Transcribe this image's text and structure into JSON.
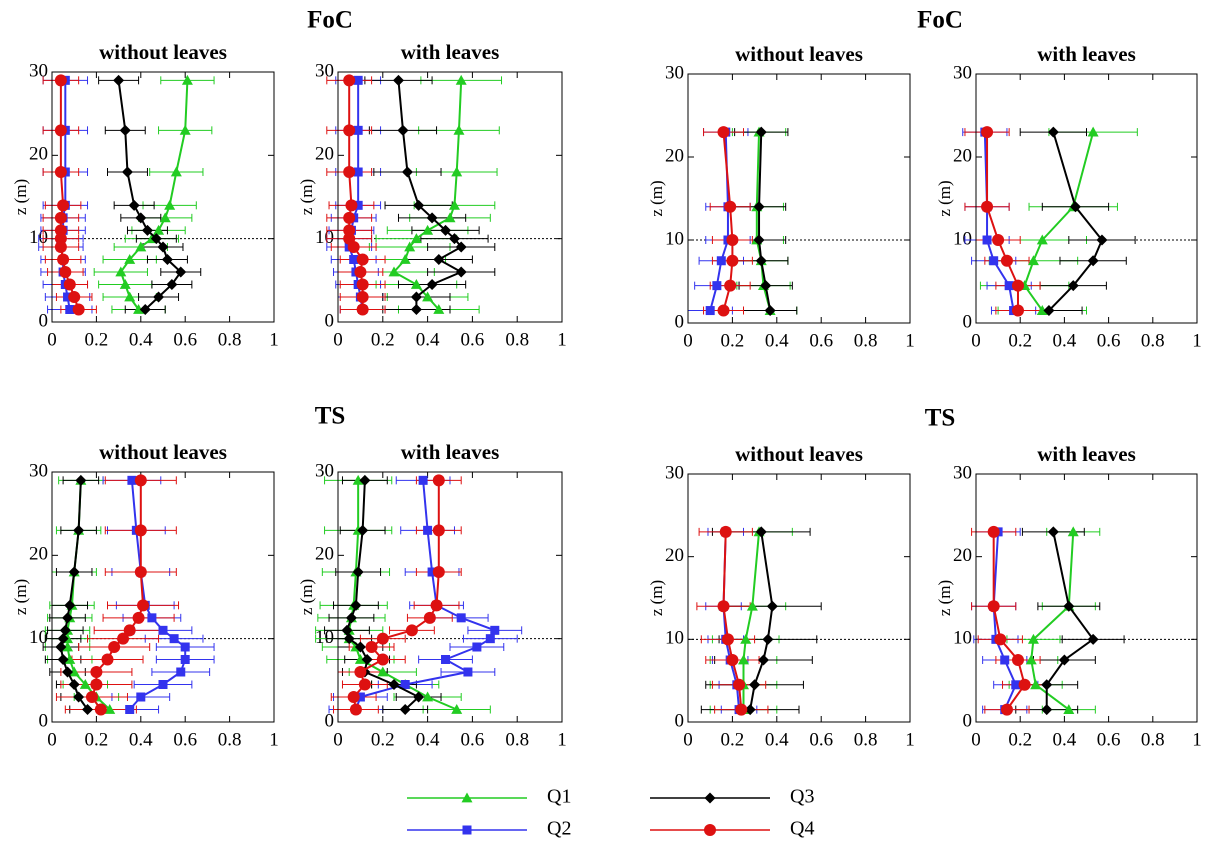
{
  "chart_data": [
    {
      "type": "line",
      "suptitle": "FoC",
      "title": "without leaves",
      "ylabel": "z (m)",
      "xlim": [
        0,
        1
      ],
      "xticks": [
        0,
        0.2,
        0.4,
        0.6,
        0.8,
        1
      ],
      "ylim": [
        0,
        30
      ],
      "yticks": [
        0,
        10,
        20,
        30
      ],
      "hline": 10,
      "series": [
        {
          "name": "Q1",
          "color": "#22cc22",
          "marker": "triangle",
          "error": 0.12,
          "z": [
            29,
            23,
            18,
            14,
            12.5,
            11,
            10,
            9,
            7.5,
            6,
            4.5,
            3,
            1.5
          ],
          "values": [
            0.61,
            0.6,
            0.56,
            0.53,
            0.51,
            0.48,
            0.45,
            0.4,
            0.35,
            0.31,
            0.33,
            0.35,
            0.39
          ]
        },
        {
          "name": "Q2",
          "color": "#3333ee",
          "marker": "square",
          "error": 0.1,
          "z": [
            29,
            23,
            18,
            14,
            12.5,
            11,
            10,
            9,
            7.5,
            6,
            4.5,
            3,
            1.5
          ],
          "values": [
            0.06,
            0.06,
            0.06,
            0.06,
            0.05,
            0.05,
            0.04,
            0.04,
            0.05,
            0.05,
            0.06,
            0.07,
            0.08
          ]
        },
        {
          "name": "Q3",
          "color": "#000000",
          "marker": "diamond",
          "error": 0.09,
          "z": [
            29,
            23,
            18,
            14,
            12.5,
            11,
            10,
            9,
            7.5,
            6,
            4.5,
            3,
            1.5
          ],
          "values": [
            0.3,
            0.33,
            0.34,
            0.37,
            0.4,
            0.43,
            0.47,
            0.5,
            0.52,
            0.58,
            0.54,
            0.48,
            0.42
          ]
        },
        {
          "name": "Q4",
          "color": "#dd1111",
          "marker": "circle",
          "error": 0.08,
          "z": [
            29,
            23,
            18,
            14,
            12.5,
            11,
            10,
            9,
            7.5,
            6,
            4.5,
            3,
            1.5
          ],
          "values": [
            0.04,
            0.04,
            0.04,
            0.05,
            0.04,
            0.04,
            0.04,
            0.04,
            0.05,
            0.06,
            0.08,
            0.1,
            0.12
          ]
        }
      ]
    },
    {
      "type": "line",
      "title": "with leaves",
      "ylabel": "z (m)",
      "xlim": [
        0,
        1
      ],
      "xticks": [
        0,
        0.2,
        0.4,
        0.6,
        0.8,
        1
      ],
      "ylim": [
        0,
        30
      ],
      "yticks": [
        0,
        10,
        20,
        30
      ],
      "hline": 10,
      "series": [
        {
          "name": "Q1",
          "color": "#22cc22",
          "marker": "triangle",
          "error": 0.18,
          "z": [
            29,
            23,
            18,
            14,
            12.5,
            11,
            10,
            9,
            7.5,
            6,
            4.5,
            3,
            1.5
          ],
          "values": [
            0.55,
            0.54,
            0.53,
            0.52,
            0.5,
            0.4,
            0.35,
            0.32,
            0.3,
            0.25,
            0.35,
            0.4,
            0.45
          ]
        },
        {
          "name": "Q2",
          "color": "#3333ee",
          "marker": "square",
          "error": 0.1,
          "z": [
            29,
            23,
            18,
            14,
            12.5,
            11,
            10,
            9,
            7.5,
            6,
            4.5,
            3,
            1.5
          ],
          "values": [
            0.09,
            0.09,
            0.09,
            0.09,
            0.07,
            0.06,
            0.05,
            0.05,
            0.07,
            0.08,
            0.09,
            0.1,
            0.11
          ]
        },
        {
          "name": "Q3",
          "color": "#000000",
          "marker": "diamond",
          "error": 0.15,
          "z": [
            29,
            23,
            18,
            14,
            12.5,
            11,
            10,
            9,
            7.5,
            6,
            4.5,
            3,
            1.5
          ],
          "values": [
            0.27,
            0.29,
            0.31,
            0.36,
            0.42,
            0.48,
            0.52,
            0.55,
            0.45,
            0.55,
            0.42,
            0.35,
            0.35
          ]
        },
        {
          "name": "Q4",
          "color": "#dd1111",
          "marker": "circle",
          "error": 0.1,
          "z": [
            29,
            23,
            18,
            14,
            12.5,
            11,
            10,
            9,
            7.5,
            6,
            4.5,
            3,
            1.5
          ],
          "values": [
            0.05,
            0.05,
            0.05,
            0.06,
            0.05,
            0.05,
            0.05,
            0.07,
            0.11,
            0.1,
            0.11,
            0.11,
            0.11
          ]
        }
      ]
    },
    {
      "type": "line",
      "suptitle": "FoC",
      "title": "without leaves",
      "ylabel": "z (m)",
      "xlim": [
        0,
        1
      ],
      "xticks": [
        0,
        0.2,
        0.4,
        0.6,
        0.8,
        1
      ],
      "ylim": [
        0,
        30
      ],
      "yticks": [
        0,
        10,
        20,
        30
      ],
      "hline": 10,
      "series": [
        {
          "name": "Q1",
          "color": "#22cc22",
          "marker": "triangle",
          "error": 0.12,
          "z": [
            23,
            14,
            10,
            7.5,
            4.5,
            1.5
          ],
          "values": [
            0.32,
            0.31,
            0.31,
            0.33,
            0.34,
            0.37
          ]
        },
        {
          "name": "Q2",
          "color": "#3333ee",
          "marker": "square",
          "error": 0.1,
          "z": [
            23,
            14,
            10,
            7.5,
            4.5,
            1.5
          ],
          "values": [
            0.17,
            0.18,
            0.18,
            0.15,
            0.13,
            0.1
          ]
        },
        {
          "name": "Q3",
          "color": "#000000",
          "marker": "diamond",
          "error": 0.12,
          "z": [
            23,
            14,
            10,
            7.5,
            4.5,
            1.5
          ],
          "values": [
            0.33,
            0.32,
            0.32,
            0.33,
            0.35,
            0.37
          ]
        },
        {
          "name": "Q4",
          "color": "#dd1111",
          "marker": "circle",
          "error": 0.09,
          "z": [
            23,
            14,
            10,
            7.5,
            4.5,
            1.5
          ],
          "values": [
            0.16,
            0.19,
            0.2,
            0.2,
            0.19,
            0.16
          ]
        }
      ]
    },
    {
      "type": "line",
      "title": "with leaves",
      "ylabel": "z (m)",
      "xlim": [
        0,
        1
      ],
      "xticks": [
        0,
        0.2,
        0.4,
        0.6,
        0.8,
        1
      ],
      "ylim": [
        0,
        30
      ],
      "yticks": [
        0,
        10,
        20,
        30
      ],
      "hline": 10,
      "series": [
        {
          "name": "Q1",
          "color": "#22cc22",
          "marker": "triangle",
          "error": 0.2,
          "z": [
            23,
            14,
            10,
            7.5,
            4.5,
            1.5
          ],
          "values": [
            0.53,
            0.44,
            0.3,
            0.26,
            0.22,
            0.3
          ]
        },
        {
          "name": "Q2",
          "color": "#3333ee",
          "marker": "square",
          "error": 0.1,
          "z": [
            23,
            14,
            10,
            7.5,
            4.5,
            1.5
          ],
          "values": [
            0.04,
            0.05,
            0.05,
            0.08,
            0.15,
            0.17
          ]
        },
        {
          "name": "Q3",
          "color": "#000000",
          "marker": "diamond",
          "error": 0.15,
          "z": [
            23,
            14,
            10,
            7.5,
            4.5,
            1.5
          ],
          "values": [
            0.35,
            0.45,
            0.57,
            0.53,
            0.44,
            0.33
          ]
        },
        {
          "name": "Q4",
          "color": "#dd1111",
          "marker": "circle",
          "error": 0.1,
          "z": [
            23,
            14,
            10,
            7.5,
            4.5,
            1.5
          ],
          "values": [
            0.05,
            0.05,
            0.1,
            0.14,
            0.19,
            0.19
          ]
        }
      ]
    },
    {
      "type": "line",
      "suptitle": "TS",
      "title": "without leaves",
      "ylabel": "z (m)",
      "xlim": [
        0,
        1
      ],
      "xticks": [
        0,
        0.2,
        0.4,
        0.6,
        0.8,
        1
      ],
      "ylim": [
        0,
        30
      ],
      "yticks": [
        0,
        10,
        20,
        30
      ],
      "hline": 10,
      "series": [
        {
          "name": "Q1",
          "color": "#22cc22",
          "marker": "triangle",
          "error": 0.1,
          "z": [
            29,
            23,
            18,
            14,
            12.5,
            11,
            10,
            9,
            7.5,
            6,
            4.5,
            3,
            1.5
          ],
          "values": [
            0.13,
            0.12,
            0.1,
            0.09,
            0.08,
            0.07,
            0.07,
            0.07,
            0.08,
            0.1,
            0.15,
            0.2,
            0.26
          ]
        },
        {
          "name": "Q2",
          "color": "#3333ee",
          "marker": "square",
          "error": 0.13,
          "z": [
            29,
            23,
            18,
            14,
            12.5,
            11,
            10,
            9,
            7.5,
            6,
            4.5,
            3,
            1.5
          ],
          "values": [
            0.36,
            0.38,
            0.4,
            0.42,
            0.45,
            0.5,
            0.55,
            0.6,
            0.6,
            0.58,
            0.5,
            0.4,
            0.35
          ]
        },
        {
          "name": "Q3",
          "color": "#000000",
          "marker": "diamond",
          "error": 0.08,
          "z": [
            29,
            23,
            18,
            14,
            12.5,
            11,
            10,
            9,
            7.5,
            6,
            4.5,
            3,
            1.5
          ],
          "values": [
            0.13,
            0.12,
            0.1,
            0.08,
            0.07,
            0.06,
            0.05,
            0.04,
            0.05,
            0.07,
            0.1,
            0.12,
            0.16
          ]
        },
        {
          "name": "Q4",
          "color": "#dd1111",
          "marker": "circle",
          "error": 0.16,
          "z": [
            29,
            23,
            18,
            14,
            12.5,
            11,
            10,
            9,
            7.5,
            6,
            4.5,
            3,
            1.5
          ],
          "values": [
            0.4,
            0.4,
            0.4,
            0.41,
            0.39,
            0.35,
            0.32,
            0.28,
            0.25,
            0.2,
            0.2,
            0.18,
            0.22
          ]
        }
      ]
    },
    {
      "type": "line",
      "title": "with leaves",
      "ylabel": "z (m)",
      "xlim": [
        0,
        1
      ],
      "xticks": [
        0,
        0.2,
        0.4,
        0.6,
        0.8,
        1
      ],
      "ylim": [
        0,
        30
      ],
      "yticks": [
        0,
        10,
        20,
        30
      ],
      "hline": 10,
      "series": [
        {
          "name": "Q1",
          "color": "#22cc22",
          "marker": "triangle",
          "error": 0.15,
          "z": [
            29,
            23,
            18,
            14,
            12.5,
            11,
            10,
            9,
            7.5,
            6,
            4.5,
            3,
            1.5
          ],
          "values": [
            0.09,
            0.09,
            0.08,
            0.07,
            0.06,
            0.05,
            0.05,
            0.08,
            0.1,
            0.2,
            0.3,
            0.4,
            0.53
          ]
        },
        {
          "name": "Q2",
          "color": "#3333ee",
          "marker": "square",
          "error": 0.12,
          "z": [
            29,
            23,
            18,
            14,
            12.5,
            11,
            10,
            9,
            7.5,
            6,
            4.5,
            3,
            1.5
          ],
          "values": [
            0.38,
            0.4,
            0.42,
            0.44,
            0.55,
            0.7,
            0.68,
            0.62,
            0.48,
            0.58,
            0.3,
            0.1,
            0.08
          ]
        },
        {
          "name": "Q3",
          "color": "#000000",
          "marker": "diamond",
          "error": 0.1,
          "z": [
            29,
            23,
            18,
            14,
            12.5,
            11,
            10,
            9,
            7.5,
            6,
            4.5,
            3,
            1.5
          ],
          "values": [
            0.12,
            0.11,
            0.09,
            0.08,
            0.06,
            0.04,
            0.05,
            0.1,
            0.13,
            0.12,
            0.25,
            0.36,
            0.3
          ]
        },
        {
          "name": "Q4",
          "color": "#dd1111",
          "marker": "circle",
          "error": 0.1,
          "z": [
            29,
            23,
            18,
            14,
            12.5,
            11,
            10,
            9,
            7.5,
            6,
            4.5,
            3,
            1.5
          ],
          "values": [
            0.45,
            0.45,
            0.45,
            0.44,
            0.41,
            0.33,
            0.2,
            0.15,
            0.2,
            0.1,
            0.12,
            0.07,
            0.08
          ]
        }
      ]
    },
    {
      "type": "line",
      "suptitle": "TS",
      "title": "without leaves",
      "ylabel": "z (m)",
      "xlim": [
        0,
        1
      ],
      "xticks": [
        0,
        0.2,
        0.4,
        0.6,
        0.8,
        1
      ],
      "ylim": [
        0,
        30
      ],
      "yticks": [
        0,
        10,
        20,
        30
      ],
      "hline": 10,
      "series": [
        {
          "name": "Q1",
          "color": "#22cc22",
          "marker": "triangle",
          "error": 0.15,
          "z": [
            23,
            14,
            10,
            7.5,
            4.5,
            1.5
          ],
          "values": [
            0.32,
            0.29,
            0.26,
            0.25,
            0.25,
            0.25
          ]
        },
        {
          "name": "Q2",
          "color": "#3333ee",
          "marker": "square",
          "error": 0.08,
          "z": [
            23,
            14,
            10,
            7.5,
            4.5,
            1.5
          ],
          "values": [
            0.17,
            0.16,
            0.17,
            0.19,
            0.22,
            0.23
          ]
        },
        {
          "name": "Q3",
          "color": "#000000",
          "marker": "diamond",
          "error": 0.22,
          "z": [
            23,
            14,
            10,
            7.5,
            4.5,
            1.5
          ],
          "values": [
            0.33,
            0.38,
            0.36,
            0.34,
            0.3,
            0.28
          ]
        },
        {
          "name": "Q4",
          "color": "#dd1111",
          "marker": "circle",
          "error": 0.12,
          "z": [
            23,
            14,
            10,
            7.5,
            4.5,
            1.5
          ],
          "values": [
            0.17,
            0.16,
            0.18,
            0.2,
            0.23,
            0.24
          ]
        }
      ]
    },
    {
      "type": "line",
      "title": "with leaves",
      "ylabel": "z (m)",
      "xlim": [
        0,
        1
      ],
      "xticks": [
        0,
        0.2,
        0.4,
        0.6,
        0.8,
        1
      ],
      "ylim": [
        0,
        30
      ],
      "yticks": [
        0,
        10,
        20,
        30
      ],
      "hline": 10,
      "series": [
        {
          "name": "Q1",
          "color": "#22cc22",
          "marker": "triangle",
          "error": 0.12,
          "z": [
            23,
            14,
            10,
            7.5,
            4.5,
            1.5
          ],
          "values": [
            0.44,
            0.42,
            0.26,
            0.25,
            0.27,
            0.42
          ]
        },
        {
          "name": "Q2",
          "color": "#3333ee",
          "marker": "square",
          "error": 0.1,
          "z": [
            23,
            14,
            10,
            7.5,
            4.5,
            1.5
          ],
          "values": [
            0.1,
            0.08,
            0.09,
            0.13,
            0.18,
            0.13
          ]
        },
        {
          "name": "Q3",
          "color": "#000000",
          "marker": "diamond",
          "error": 0.14,
          "z": [
            23,
            14,
            10,
            7.5,
            4.5,
            1.5
          ],
          "values": [
            0.35,
            0.42,
            0.53,
            0.4,
            0.32,
            0.32
          ]
        },
        {
          "name": "Q4",
          "color": "#dd1111",
          "marker": "circle",
          "error": 0.1,
          "z": [
            23,
            14,
            10,
            7.5,
            4.5,
            1.5
          ],
          "values": [
            0.08,
            0.08,
            0.11,
            0.19,
            0.22,
            0.14
          ]
        }
      ]
    }
  ]
}
